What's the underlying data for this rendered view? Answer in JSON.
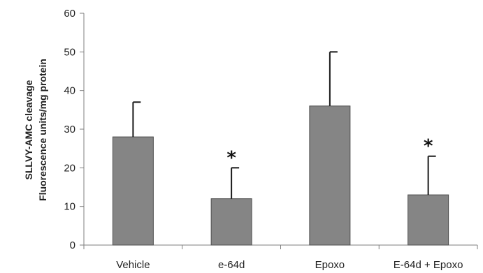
{
  "chart_data": {
    "type": "bar",
    "title": "",
    "xlabel": "",
    "ylabel": [
      "SLLVY-AMC cleavage",
      "Fluorescence units/mg protein"
    ],
    "categories": [
      "Vehicle",
      "e-64d",
      "Epoxo",
      "E-64d + Epoxo"
    ],
    "values": [
      28,
      12,
      36,
      13
    ],
    "error_upper": [
      37,
      20,
      50,
      23
    ],
    "annotations": [
      "",
      "*",
      "",
      "*"
    ],
    "ylim": [
      0,
      60
    ],
    "yticks": [
      0,
      10,
      20,
      30,
      40,
      50,
      60
    ],
    "grid": false,
    "legend": "none",
    "colors": {
      "bar": "#858585",
      "bar_edge": "#4d4d4d",
      "axis": "#7f7f7f",
      "error_bar": "#1a1a1a"
    }
  }
}
